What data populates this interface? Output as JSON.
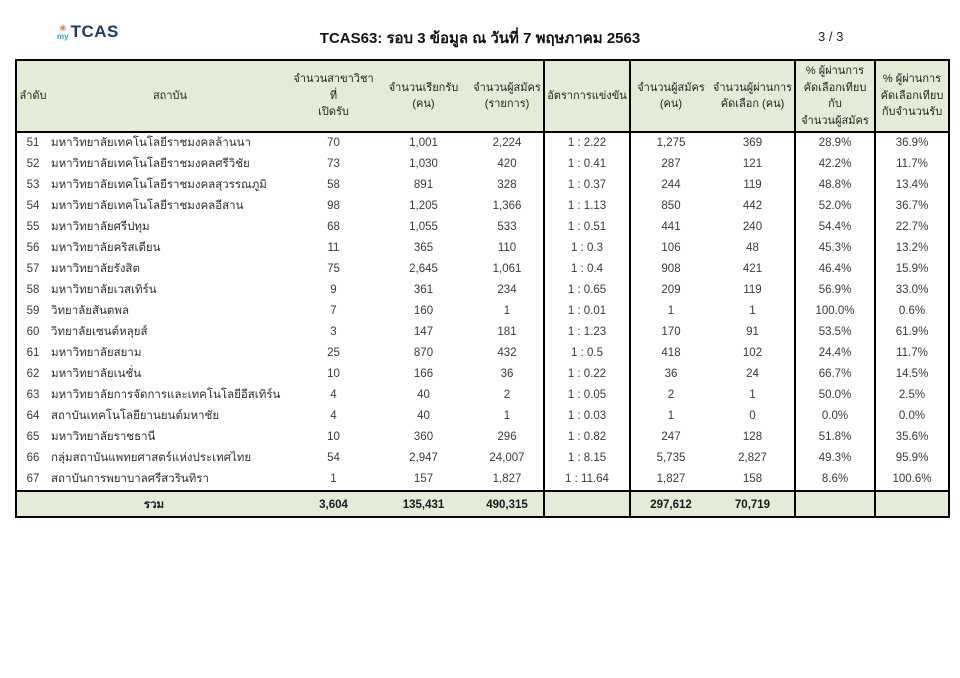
{
  "header": {
    "title": "TCAS63: รอบ 3 ข้อมูล ณ วันที่ 7 พฤษภาคม 2563",
    "page_indicator": "3 / 3",
    "logo": {
      "my": "my",
      "tcas": "TCAS",
      "navy_color": "#1f3a68",
      "teal_color": "#2fa7bd",
      "flower_color": "#c5854f"
    },
    "icons": {
      "flower-icon": "❀"
    }
  },
  "table": {
    "header_fill": "#e2ecd7",
    "columns": [
      {
        "key": "no",
        "lines": [
          "ลำดับ"
        ]
      },
      {
        "key": "institution",
        "lines": [
          "สถาบัน"
        ]
      },
      {
        "key": "programs-offered",
        "lines": [
          "จำนวนสาขาวิชาที่",
          "เปิดรับ"
        ]
      },
      {
        "key": "intake",
        "lines": [
          "จำนวนเรียกรับ",
          "(คน)"
        ]
      },
      {
        "key": "applications",
        "lines": [
          "จำนวนผู้สมัคร",
          "(รายการ)"
        ]
      },
      {
        "key": "competition-ratio",
        "lines": [
          "อัตราการแข่งขัน"
        ]
      },
      {
        "key": "applicants",
        "lines": [
          "จำนวนผู้สมัคร",
          "(คน)"
        ]
      },
      {
        "key": "passed-selection",
        "lines": [
          "จำนวนผู้ผ่านการ",
          "คัดเลือก (คน)"
        ]
      },
      {
        "key": "pct-passed-vs-applicants",
        "lines": [
          "% ผู้ผ่านการ",
          "คัดเลือกเทียบกับ",
          "จำนวนผู้สมัคร"
        ]
      },
      {
        "key": "pct-passed-vs-intake",
        "lines": [
          "% ผู้ผ่านการ",
          "คัดเลือกเทียบ",
          "กับจำนวนรับ"
        ]
      }
    ],
    "rows": [
      [
        "51",
        "มหาวิทยาลัยเทคโนโลยีราชมงคลล้านนา",
        "70",
        "1,001",
        "2,224",
        "1 : 2.22",
        "1,275",
        "369",
        "28.9%",
        "36.9%"
      ],
      [
        "52",
        "มหาวิทยาลัยเทคโนโลยีราชมงคลศรีวิชัย",
        "73",
        "1,030",
        "420",
        "1 : 0.41",
        "287",
        "121",
        "42.2%",
        "11.7%"
      ],
      [
        "53",
        "มหาวิทยาลัยเทคโนโลยีราชมงคลสุวรรณภูมิ",
        "58",
        "891",
        "328",
        "1 : 0.37",
        "244",
        "119",
        "48.8%",
        "13.4%"
      ],
      [
        "54",
        "มหาวิทยาลัยเทคโนโลยีราชมงคลอีสาน",
        "98",
        "1,205",
        "1,366",
        "1 : 1.13",
        "850",
        "442",
        "52.0%",
        "36.7%"
      ],
      [
        "55",
        "มหาวิทยาลัยศรีปทุม",
        "68",
        "1,055",
        "533",
        "1 : 0.51",
        "441",
        "240",
        "54.4%",
        "22.7%"
      ],
      [
        "56",
        "มหาวิทยาลัยคริสเตียน",
        "11",
        "365",
        "110",
        "1 : 0.3",
        "106",
        "48",
        "45.3%",
        "13.2%"
      ],
      [
        "57",
        "มหาวิทยาลัยรังสิต",
        "75",
        "2,645",
        "1,061",
        "1 : 0.4",
        "908",
        "421",
        "46.4%",
        "15.9%"
      ],
      [
        "58",
        "มหาวิทยาลัยเวสเทิร์น",
        "9",
        "361",
        "234",
        "1 : 0.65",
        "209",
        "119",
        "56.9%",
        "33.0%"
      ],
      [
        "59",
        "วิทยาลัยสันตพล",
        "7",
        "160",
        "1",
        "1 : 0.01",
        "1",
        "1",
        "100.0%",
        "0.6%"
      ],
      [
        "60",
        "วิทยาลัยเซนต์หลุยส์",
        "3",
        "147",
        "181",
        "1 : 1.23",
        "170",
        "91",
        "53.5%",
        "61.9%"
      ],
      [
        "61",
        "มหาวิทยาลัยสยาม",
        "25",
        "870",
        "432",
        "1 : 0.5",
        "418",
        "102",
        "24.4%",
        "11.7%"
      ],
      [
        "62",
        "มหาวิทยาลัยเนชั่น",
        "10",
        "166",
        "36",
        "1 : 0.22",
        "36",
        "24",
        "66.7%",
        "14.5%"
      ],
      [
        "63",
        "มหาวิทยาลัยการจัดการและเทคโนโลยีอีสเทิร์น",
        "4",
        "40",
        "2",
        "1 : 0.05",
        "2",
        "1",
        "50.0%",
        "2.5%"
      ],
      [
        "64",
        "สถาบันเทคโนโลยียานยนต์มหาชัย",
        "4",
        "40",
        "1",
        "1 : 0.03",
        "1",
        "0",
        "0.0%",
        "0.0%"
      ],
      [
        "65",
        "มหาวิทยาลัยราชธานี",
        "10",
        "360",
        "296",
        "1 : 0.82",
        "247",
        "128",
        "51.8%",
        "35.6%"
      ],
      [
        "66",
        "กลุ่มสถาบันแพทยศาสตร์แห่งประเทศไทย",
        "54",
        "2,947",
        "24,007",
        "1 : 8.15",
        "5,735",
        "2,827",
        "49.3%",
        "95.9%"
      ],
      [
        "67",
        "สถาบันการพยาบาลศรีสวรินทิรา",
        "1",
        "157",
        "1,827",
        "1 : 11.64",
        "1,827",
        "158",
        "8.6%",
        "100.6%"
      ]
    ],
    "total": {
      "label": "รวม",
      "values": [
        "3,604",
        "135,431",
        "490,315",
        "",
        "297,612",
        "70,719",
        "",
        ""
      ]
    }
  }
}
